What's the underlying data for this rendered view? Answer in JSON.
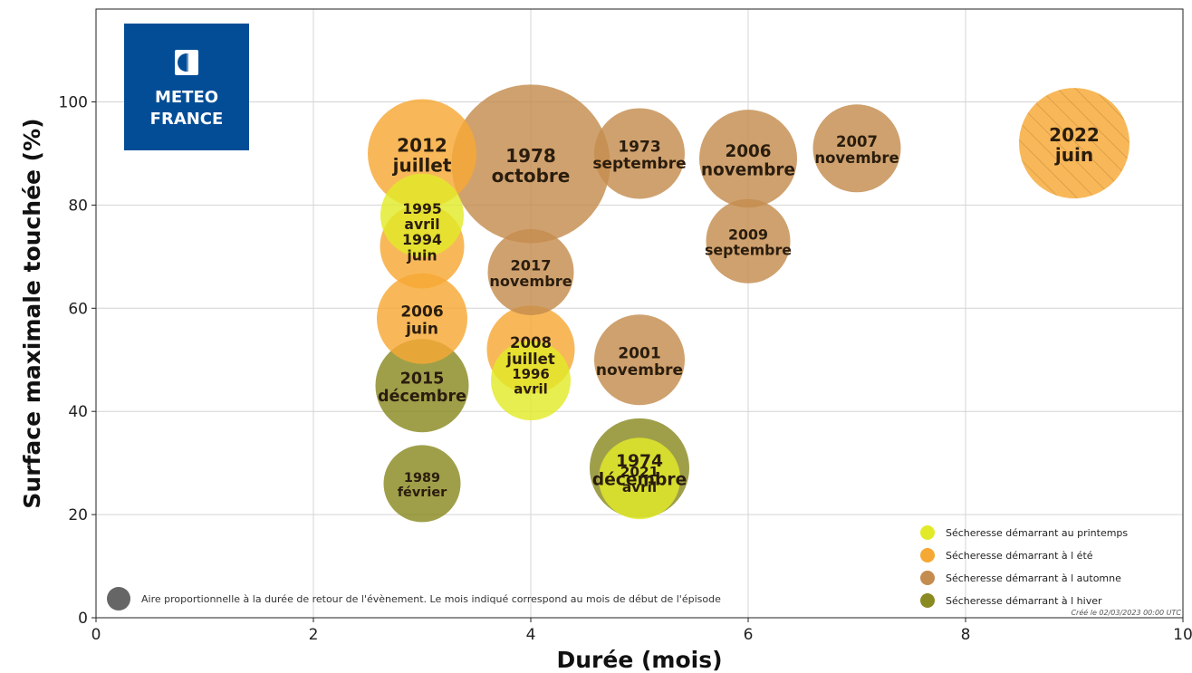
{
  "chart_data": {
    "type": "scatter",
    "title": "",
    "xlabel": "Durée (mois)",
    "ylabel": "Surface maximale touchée (%)",
    "xlim": [
      0,
      10
    ],
    "ylim": [
      0,
      118
    ],
    "xticks": [
      0,
      2,
      4,
      6,
      8,
      10
    ],
    "yticks": [
      0,
      20,
      40,
      60,
      80,
      100
    ],
    "grid": true,
    "logo": "METEO FRANCE",
    "note": "Aire proportionnelle à la durée de retour de l'évènement. Le mois indiqué correspond au mois de début de l'épisode",
    "credit": "Créé le 02/03/2023 00:00 UTC",
    "legend": {
      "placement": "bottom-right",
      "entries": [
        {
          "season": "printemps",
          "label": "Sécheresse démarrant au printemps"
        },
        {
          "season": "ete",
          "label": "Sécheresse démarrant à l été"
        },
        {
          "season": "automne",
          "label": "Sécheresse démarrant à l automne"
        },
        {
          "season": "hiver",
          "label": "Sécheresse démarrant à l hiver"
        }
      ]
    },
    "colors": {
      "printemps": "#e2ea28",
      "ete": "#f6a834",
      "automne": "#c48c4e",
      "hiver": "#8a8a22",
      "note_marker": "#666666"
    },
    "points": [
      {
        "year": "1978",
        "month": "octobre",
        "x": 4,
        "y": 88,
        "size": 1.75,
        "season": "automne"
      },
      {
        "year": "2012",
        "month": "juillet",
        "x": 3,
        "y": 90,
        "size": 1.2,
        "season": "ete"
      },
      {
        "year": "1973",
        "month": "septembre",
        "x": 5,
        "y": 90,
        "size": 1.0,
        "season": "automne"
      },
      {
        "year": "2006",
        "month": "novembre",
        "x": 6,
        "y": 89,
        "size": 1.08,
        "season": "automne"
      },
      {
        "year": "2007",
        "month": "novembre",
        "x": 7,
        "y": 91,
        "size": 0.97,
        "season": "automne"
      },
      {
        "year": "2022",
        "month": "juin",
        "x": 9,
        "y": 92,
        "size": 1.22,
        "season": "ete",
        "hatched": true
      },
      {
        "year": "2009",
        "month": "septembre",
        "x": 6,
        "y": 73,
        "size": 0.93,
        "season": "automne"
      },
      {
        "year": "1994",
        "month": "juin",
        "x": 3,
        "y": 72,
        "size": 0.93,
        "season": "ete"
      },
      {
        "year": "2017",
        "month": "novembre",
        "x": 4,
        "y": 67,
        "size": 0.95,
        "season": "automne"
      },
      {
        "year": "2006",
        "month": "juin",
        "x": 3,
        "y": 58,
        "size": 1.0,
        "season": "ete"
      },
      {
        "year": "2001",
        "month": "novembre",
        "x": 5,
        "y": 50,
        "size": 1.0,
        "season": "automne"
      },
      {
        "year": "1996",
        "month": "avril",
        "x": 4,
        "y": 46,
        "size": 0.88,
        "season": "printemps"
      },
      {
        "year": "2008",
        "month": "juillet",
        "x": 4,
        "y": 52,
        "size": 0.97,
        "season": "ete"
      },
      {
        "year": "2015",
        "month": "décembre",
        "x": 3,
        "y": 45,
        "size": 1.03,
        "season": "hiver"
      },
      {
        "year": "1974",
        "month": "décembre",
        "x": 5,
        "y": 29,
        "size": 1.1,
        "season": "hiver"
      },
      {
        "year": "1995",
        "month": "avril",
        "x": 3,
        "y": 78,
        "size": 0.92,
        "season": "printemps"
      },
      {
        "year": "2021",
        "month": "avril",
        "x": 5,
        "y": 27,
        "size": 0.9,
        "season": "printemps"
      },
      {
        "year": "1989",
        "month": "février",
        "x": 3,
        "y": 26,
        "size": 0.85,
        "season": "hiver"
      }
    ]
  }
}
